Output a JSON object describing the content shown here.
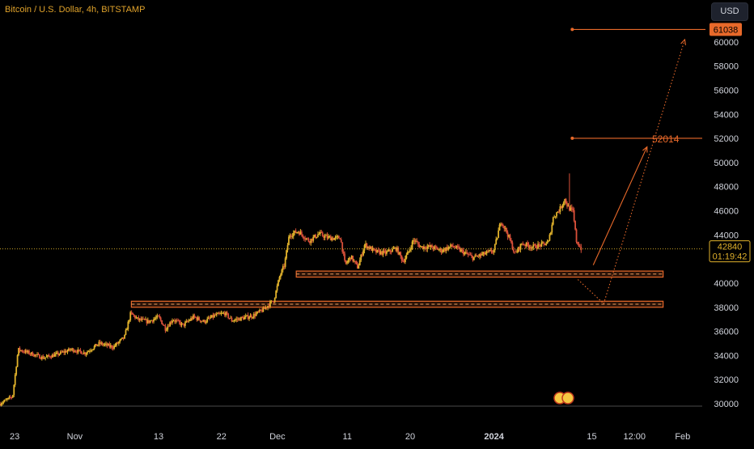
{
  "header": {
    "title": "Bitcoin / U.S. Dollar, 4h, BITSTAMP",
    "currency_label": "USD"
  },
  "colors": {
    "background": "#000000",
    "up": "#e1b22b",
    "down": "#d9503a",
    "accent": "#e8692a",
    "axis_text": "#d1d4dc",
    "price_dotted": "#c9a227"
  },
  "last_price": {
    "value": 42840,
    "label": "42840",
    "countdown": "01:19:42"
  },
  "chart_data": {
    "type": "candlestick",
    "title": "Bitcoin / U.S. Dollar, 4h, BITSTAMP",
    "ylim": [
      29700,
      63500
    ],
    "y_ticks": [
      30000,
      32000,
      34000,
      36000,
      38000,
      40000,
      42000,
      44000,
      46000,
      48000,
      50000,
      52000,
      54000,
      56000,
      58000,
      60000
    ],
    "x_ticks": [
      {
        "t": 12.9,
        "label": "23",
        "bold": false
      },
      {
        "t": 21.5,
        "label": "Nov",
        "bold": false
      },
      {
        "t": 33.5,
        "label": "13",
        "bold": false
      },
      {
        "t": 42.5,
        "label": "22",
        "bold": false
      },
      {
        "t": 50.5,
        "label": "Dec",
        "bold": false
      },
      {
        "t": 60.5,
        "label": "11",
        "bold": false
      },
      {
        "t": 69.5,
        "label": "20",
        "bold": false
      },
      {
        "t": 81.5,
        "label": "2024",
        "bold": true
      },
      {
        "t": 95.5,
        "label": "15",
        "bold": false
      },
      {
        "t": 101.6,
        "label": "12:00",
        "bold": false
      },
      {
        "t": 108.5,
        "label": "Feb",
        "bold": false
      }
    ],
    "x_domain_days": [
      10.8,
      111.3
    ],
    "price_path": [
      [
        10.8,
        30000
      ],
      [
        12.6,
        30600
      ],
      [
        13.4,
        34500
      ],
      [
        15,
        34200
      ],
      [
        17,
        33800
      ],
      [
        19,
        34100
      ],
      [
        21,
        34500
      ],
      [
        23,
        34200
      ],
      [
        25,
        35000
      ],
      [
        27,
        34700
      ],
      [
        28.6,
        35500
      ],
      [
        29.5,
        37500
      ],
      [
        30.5,
        37000
      ],
      [
        32,
        36800
      ],
      [
        33.5,
        37200
      ],
      [
        34.5,
        36200
      ],
      [
        35.5,
        37000
      ],
      [
        37,
        36500
      ],
      [
        38.5,
        37200
      ],
      [
        40,
        36800
      ],
      [
        41.5,
        37300
      ],
      [
        43,
        37500
      ],
      [
        44,
        36900
      ],
      [
        45.5,
        37100
      ],
      [
        47,
        37300
      ],
      [
        48.5,
        37800
      ],
      [
        50,
        38600
      ],
      [
        50.8,
        40500
      ],
      [
        51.5,
        41500
      ],
      [
        52.2,
        44000
      ],
      [
        53.5,
        44300
      ],
      [
        55,
        43500
      ],
      [
        56.5,
        44100
      ],
      [
        57.5,
        43800
      ],
      [
        58.8,
        43700
      ],
      [
        59.5,
        43800
      ],
      [
        60.2,
        41500
      ],
      [
        61,
        42200
      ],
      [
        62,
        41300
      ],
      [
        63,
        43200
      ],
      [
        64.5,
        42600
      ],
      [
        66,
        42500
      ],
      [
        67.5,
        42900
      ],
      [
        68.5,
        41800
      ],
      [
        69.2,
        42500
      ],
      [
        70,
        43600
      ],
      [
        71,
        43000
      ],
      [
        72.5,
        43000
      ],
      [
        74,
        42700
      ],
      [
        75.5,
        43100
      ],
      [
        77,
        42600
      ],
      [
        78.5,
        42100
      ],
      [
        80,
        42400
      ],
      [
        81.5,
        42700
      ],
      [
        82.5,
        45200
      ],
      [
        83.5,
        44000
      ],
      [
        84.5,
        42400
      ],
      [
        85.5,
        43300
      ],
      [
        87,
        43000
      ],
      [
        88.5,
        43200
      ],
      [
        89.3,
        43400
      ],
      [
        90,
        45500
      ],
      [
        91,
        46200
      ],
      [
        91.6,
        47000
      ],
      [
        92.1,
        46300
      ],
      [
        92.8,
        45900
      ],
      [
        93.3,
        43500
      ],
      [
        93.7,
        43100
      ],
      [
        94,
        42840
      ]
    ],
    "spike_high": {
      "t": 92.3,
      "value": 49100
    },
    "zones": [
      {
        "label": "zone-upper",
        "t0": 53.2,
        "t1": 105.7,
        "low": 40500,
        "high": 41000
      },
      {
        "label": "zone-lower",
        "t0": 29.6,
        "t1": 105.7,
        "low": 38000,
        "high": 38500
      }
    ],
    "levels": [
      {
        "label": "52014",
        "value": 52014,
        "t0": 92.7,
        "t1": 111.3,
        "axis_label": ""
      },
      {
        "label": "61038",
        "value": 61038,
        "t0": 92.7,
        "t1": 111.3,
        "axis_label": "61038"
      }
    ],
    "arrows": [
      {
        "from": {
          "t": 95.7,
          "v": 41500
        },
        "to": {
          "t": 103.4,
          "v": 51300
        },
        "style": "solid"
      },
      {
        "from": {
          "t": 97.2,
          "v": 38300
        },
        "to": {
          "t": 108.8,
          "v": 60200
        },
        "style": "dotted"
      },
      {
        "from": {
          "t": 93.5,
          "v": 40300
        },
        "to": {
          "t": 97.2,
          "v": 38300
        },
        "style": "dotted"
      }
    ]
  }
}
